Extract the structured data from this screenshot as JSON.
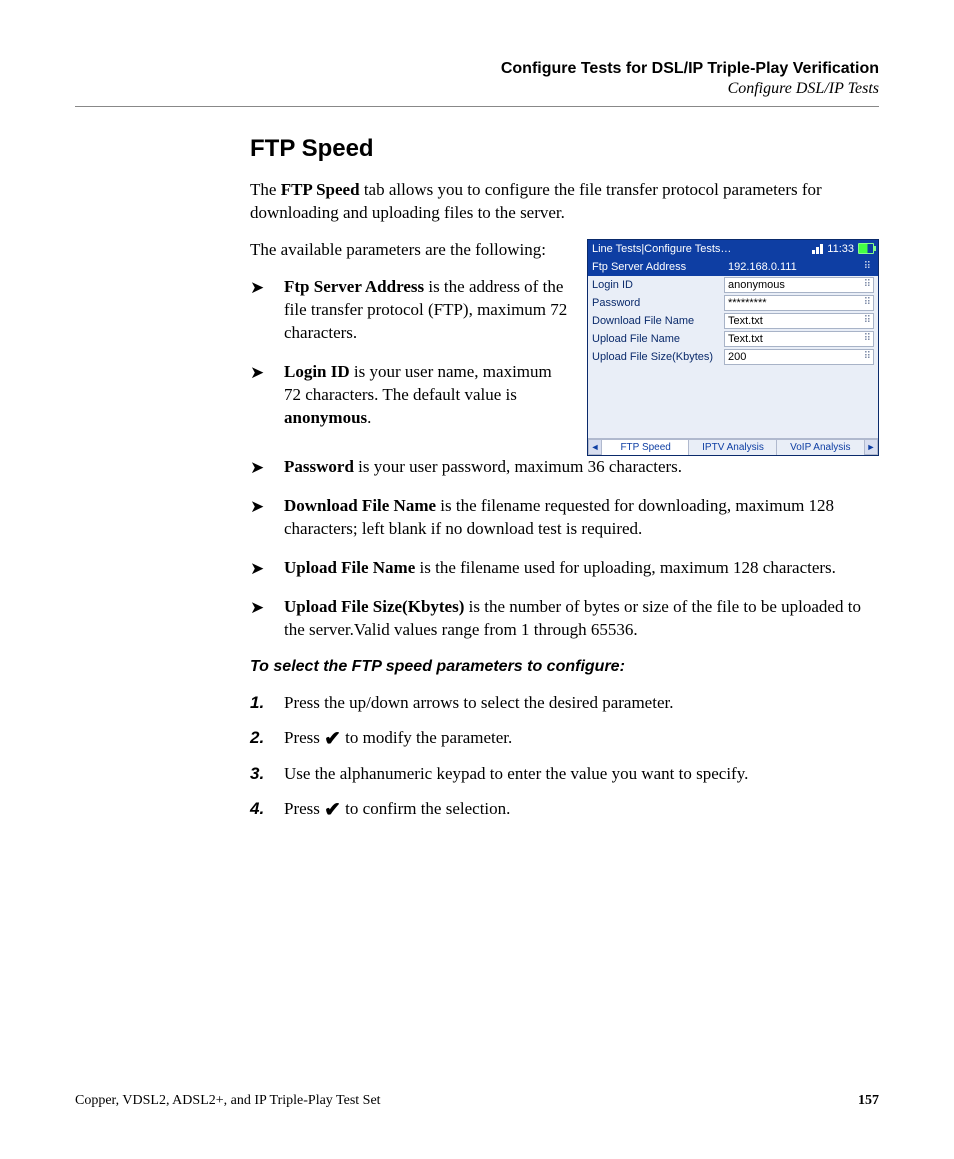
{
  "header": {
    "chapter": "Configure Tests for DSL/IP Triple-Play Verification",
    "section": "Configure DSL/IP Tests"
  },
  "title": "FTP Speed",
  "intro": {
    "p1a": "The ",
    "p1b": "FTP Speed",
    "p1c": " tab allows you to configure the file transfer protocol parameters for downloading and uploading files to the server.",
    "p2": "The available parameters are the following:"
  },
  "bullets": {
    "b1a": "Ftp Server Address",
    "b1b": " is the address of the file transfer protocol (FTP), maximum 72 characters.",
    "b2a": "Login ID",
    "b2b": " is your user name, maximum 72 characters. The default value is ",
    "b2c": "anonymous",
    "b2d": ".",
    "b3a": "Password",
    "b3b": " is your user password, maximum 36 characters.",
    "b4a": "Download File Name",
    "b4b": " is the filename requested for downloading, maximum 128 characters; left blank if no download test is required.",
    "b5a": "Upload File Name",
    "b5b": " is the filename used for uploading, maximum 128 characters.",
    "b6a": "Upload File Size(Kbytes)",
    "b6b": " is the number of bytes or size of the file to be uploaded to the server.Valid values range from 1 through 65536."
  },
  "subhead": "To select the FTP speed parameters to configure:",
  "steps": {
    "s1": "Press the up/down arrows to select the desired parameter.",
    "s2a": "Press ",
    "s2b": " to modify the parameter.",
    "s3": "Use the alphanumeric keypad to enter the value you want to specify.",
    "s4a": "Press ",
    "s4b": " to confirm the selection."
  },
  "device": {
    "titlebar": "Line Tests|Configure Tests…",
    "time": "11:33",
    "rows": [
      {
        "label": "Ftp Server Address",
        "value": "192.168.0.111",
        "sel": true
      },
      {
        "label": "Login ID",
        "value": "anonymous",
        "sel": false
      },
      {
        "label": "Password",
        "value": "*********",
        "sel": false
      },
      {
        "label": "Download File Name",
        "value": "Text.txt",
        "sel": false
      },
      {
        "label": "Upload File Name",
        "value": "Text.txt",
        "sel": false
      },
      {
        "label": "Upload File Size(Kbytes)",
        "value": "200",
        "sel": false
      }
    ],
    "tabs": {
      "left": "◄",
      "right": "►",
      "t1": "FTP Speed",
      "t2": "IPTV Analysis",
      "t3": "VoIP Analysis"
    }
  },
  "footer": {
    "left": "Copper, VDSL2, ADSL2+, and IP Triple-Play Test Set",
    "page": "157"
  },
  "glyph": {
    "check": "✔"
  }
}
